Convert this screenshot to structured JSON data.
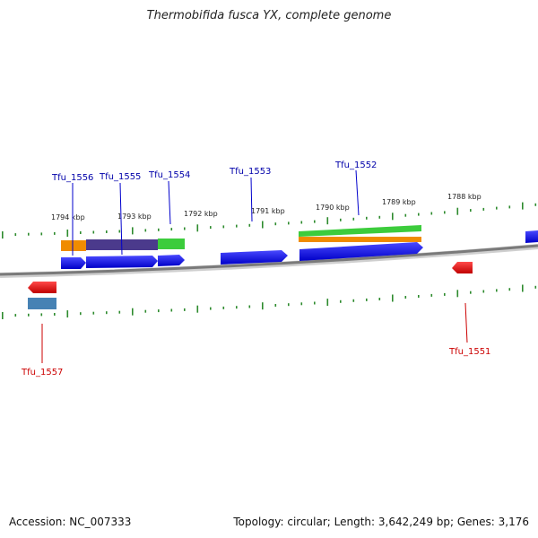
{
  "title": "Thermobifida fusca YX, complete genome",
  "footer": {
    "accession": "Accession: NC_007333",
    "topology": "Topology: circular; Length: 3,642,249 bp; Genes: 3,176"
  },
  "colors": {
    "forward_label": "#0000aa",
    "reverse_label": "#cc0000",
    "forward_gene": "#1010e0",
    "reverse_gene": "#e01010",
    "backbone": "#808080",
    "tick": "#2e8b2e"
  },
  "scale_labels": [
    "1794 kbp",
    "1793 kbp",
    "1792 kbp",
    "1791 kbp",
    "1790 kbp",
    "1789 kbp",
    "1788 kbp"
  ],
  "forward_gene_labels": [
    "Tfu_1556",
    "Tfu_1555",
    "Tfu_1554",
    "Tfu_1553",
    "Tfu_1552"
  ],
  "reverse_gene_labels": [
    "Tfu_1557",
    "Tfu_1551"
  ]
}
